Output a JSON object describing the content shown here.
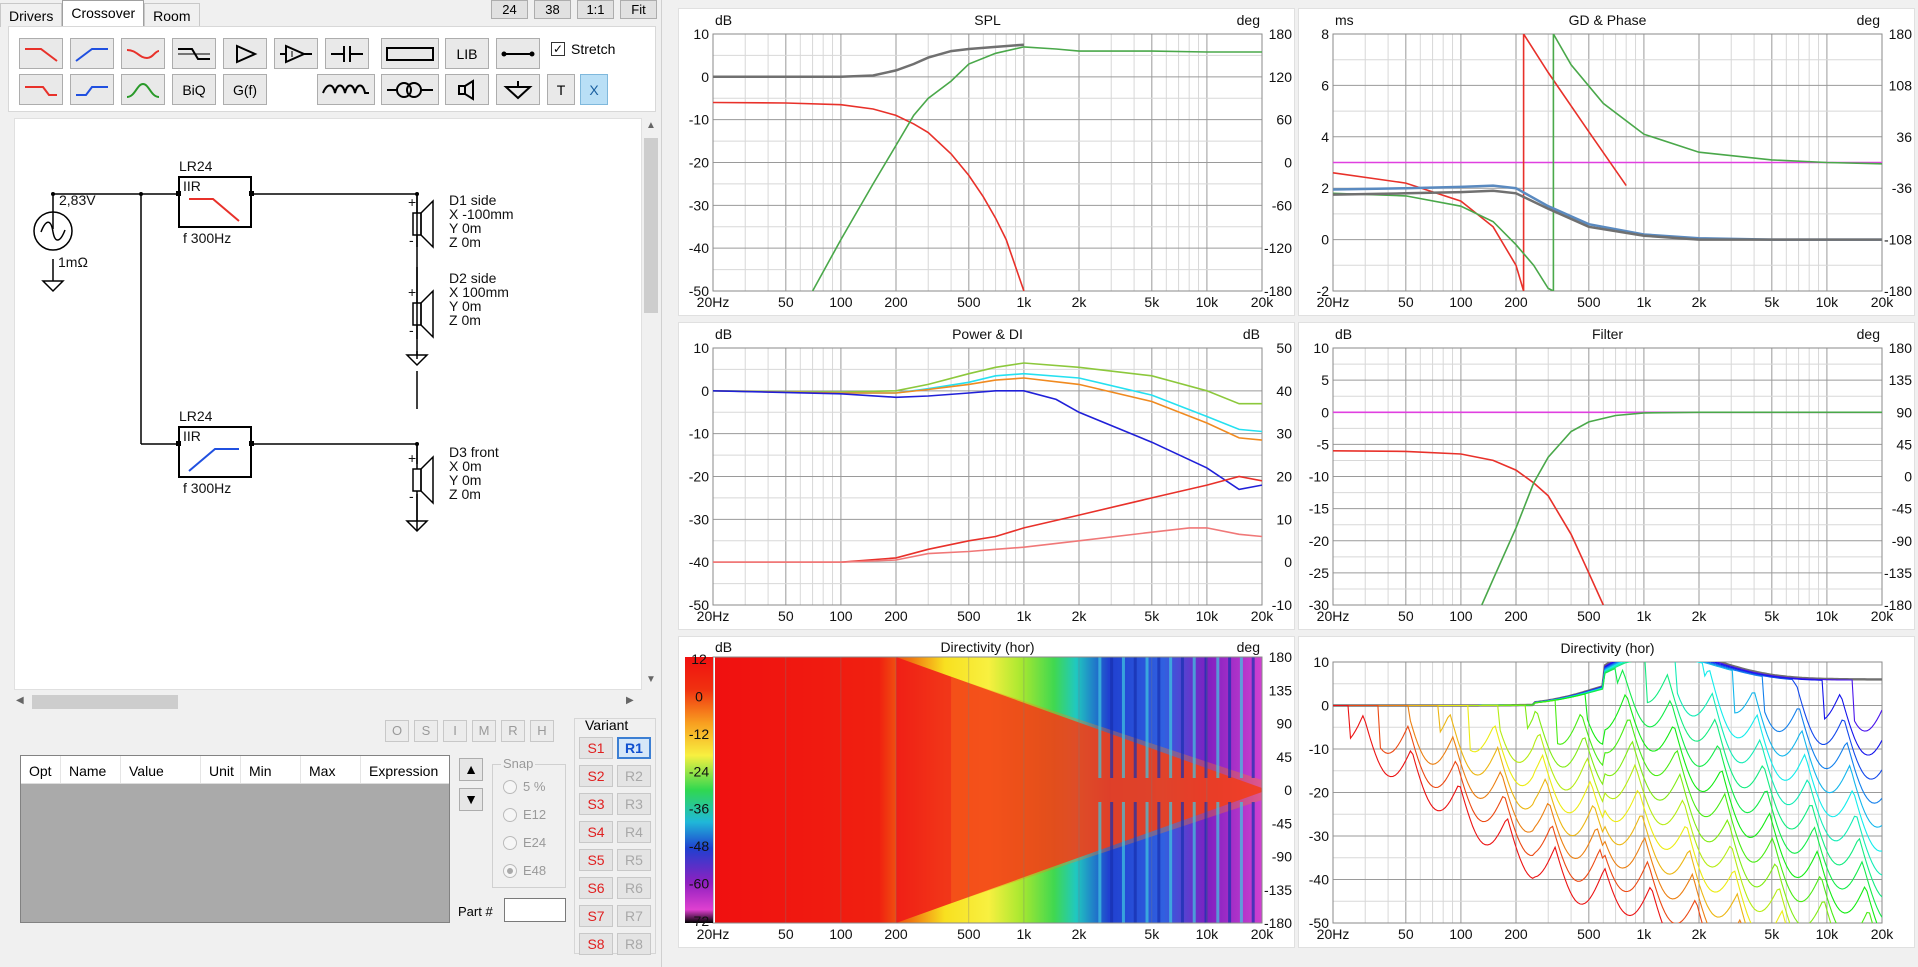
{
  "tabs": [
    {
      "label": "Drivers"
    },
    {
      "label": "Crossover"
    },
    {
      "label": "Room"
    }
  ],
  "zoom_buttons": [
    "24",
    "38",
    "1:1",
    "Fit"
  ],
  "toolbox": {
    "biq": "BiQ",
    "gf": "G(f)",
    "lib": "LIB",
    "t": "T",
    "x": "X",
    "stretch_label": "Stretch",
    "stretch_checked": "✓"
  },
  "schematic": {
    "source_voltage": "2,83V",
    "source_impedance": "1mΩ",
    "filter1": {
      "name": "LR24",
      "type": "IIR",
      "freq": "f   300Hz"
    },
    "filter2": {
      "name": "LR24",
      "type": "IIR",
      "freq": "f   300Hz"
    },
    "drivers": [
      {
        "name": "D1 side",
        "x": "X -100mm",
        "y": "Y 0m",
        "z": "Z 0m"
      },
      {
        "name": "D2 side",
        "x": "X 100mm",
        "y": "Y 0m",
        "z": "Z 0m"
      },
      {
        "name": "D3 front",
        "x": "X 0m",
        "y": "Y 0m",
        "z": "Z 0m"
      }
    ]
  },
  "optimizer_buttons": [
    "O",
    "S",
    "I",
    "M",
    "R",
    "H"
  ],
  "param_table": {
    "columns": [
      "Opt",
      "Name",
      "Value",
      "Unit",
      "Min",
      "Max",
      "Expression"
    ]
  },
  "snap": {
    "legend": "Snap",
    "options": [
      "5 %",
      "E12",
      "E24",
      "E48"
    ],
    "selected": "E48"
  },
  "part_label": "Part #",
  "variant": {
    "title": "Variant",
    "s_buttons": [
      "S1",
      "S2",
      "S3",
      "S4",
      "S5",
      "S6",
      "S7",
      "S8"
    ],
    "r_buttons": [
      "R1",
      "R2",
      "R3",
      "R4",
      "R5",
      "R6",
      "R7",
      "R8"
    ],
    "selected": "R1"
  },
  "colors": {
    "red": "#e8312a",
    "green": "#4aa84a",
    "gray": "#707070",
    "blue": "#2020d8",
    "cyan": "#25e0f0",
    "orange": "#f08a20",
    "lime": "#8cc83c",
    "pink": "#f07878",
    "magenta": "#e040e0",
    "steel": "#5a8ac0"
  },
  "chart_data": [
    {
      "type": "line",
      "title": "SPL",
      "xlabel": "",
      "ylabel": "dB",
      "y2label": "deg",
      "xscale": "log",
      "xlim": [
        20,
        20000
      ],
      "ylim": [
        -50,
        10
      ],
      "y2lim": [
        -180,
        180
      ],
      "xticks": [
        "20Hz",
        "50",
        "100",
        "200",
        "500",
        "1k",
        "2k",
        "5k",
        "10k",
        "20k"
      ],
      "yticks": [
        10,
        0,
        -10,
        -20,
        -30,
        -40,
        -50
      ],
      "y2ticks": [
        180,
        120,
        60,
        0,
        -60,
        -120,
        -180
      ],
      "series": [
        {
          "color": "red",
          "x": [
            20,
            50,
            100,
            150,
            200,
            250,
            300,
            400,
            500,
            600,
            700,
            800,
            1000
          ],
          "y": [
            -6,
            -6.1,
            -6.5,
            -7.5,
            -9,
            -11,
            -13,
            -18,
            -23,
            -28,
            -33,
            -38,
            -50
          ]
        },
        {
          "color": "green",
          "x": [
            70,
            100,
            150,
            200,
            250,
            300,
            400,
            500,
            700,
            1000,
            1500,
            2000,
            5000,
            10000,
            20000
          ],
          "y": [
            -50,
            -38,
            -25,
            -16,
            -9,
            -5,
            -1,
            3,
            5.5,
            7,
            6.5,
            6,
            6,
            5.8,
            5.8
          ]
        },
        {
          "color": "gray",
          "x": [
            20,
            100,
            150,
            200,
            250,
            300,
            400,
            500,
            700,
            1000
          ],
          "y": [
            0,
            0,
            0.3,
            1.5,
            3,
            4.5,
            6,
            6.5,
            7,
            7.5
          ]
        }
      ]
    },
    {
      "type": "line",
      "title": "GD & Phase",
      "xlabel": "",
      "ylabel": "ms",
      "y2label": "deg",
      "xscale": "log",
      "xlim": [
        20,
        20000
      ],
      "ylim": [
        -2,
        8
      ],
      "y2lim": [
        -180,
        180
      ],
      "xticks": [
        "20Hz",
        "50",
        "100",
        "200",
        "500",
        "1k",
        "2k",
        "5k",
        "10k",
        "20k"
      ],
      "yticks": [
        8,
        6,
        4,
        2,
        0,
        -2
      ],
      "y2ticks": [
        180,
        108,
        36,
        -36,
        -108,
        -180
      ],
      "series": [
        {
          "color": "magenta",
          "x": [
            20,
            20000
          ],
          "y": [
            3,
            3
          ]
        },
        {
          "color": "red",
          "x": [
            20,
            50,
            100,
            150,
            200,
            220,
            220,
            300,
            500,
            800
          ],
          "y": [
            2.6,
            2.2,
            1.5,
            0.5,
            -1,
            -2,
            8,
            6.5,
            4.2,
            2.1
          ]
        },
        {
          "color": "green",
          "x": [
            20,
            50,
            100,
            150,
            200,
            250,
            300,
            320,
            320,
            400,
            600,
            1000,
            2000,
            5000,
            10000,
            20000
          ],
          "y": [
            1.8,
            1.7,
            1.3,
            0.7,
            -0.2,
            -1,
            -1.9,
            -2,
            8,
            6.8,
            5.3,
            4.1,
            3.4,
            3.1,
            3,
            2.95
          ]
        },
        {
          "color": "steel",
          "x": [
            20,
            50,
            100,
            150,
            200,
            300,
            500,
            1000,
            2000,
            5000,
            20000
          ],
          "y": [
            1.95,
            2,
            2.05,
            2.1,
            2.0,
            1.3,
            0.6,
            0.2,
            0.05,
            0,
            0
          ]
        },
        {
          "color": "gray",
          "x": [
            20,
            50,
            100,
            150,
            200,
            300,
            500,
            1000,
            2000,
            5000,
            20000
          ],
          "y": [
            1.75,
            1.8,
            1.85,
            1.9,
            1.8,
            1.2,
            0.5,
            0.15,
            0,
            0,
            0
          ]
        }
      ]
    },
    {
      "type": "line",
      "title": "Power & DI",
      "xlabel": "",
      "ylabel": "dB",
      "y2label": "dB",
      "xscale": "log",
      "xlim": [
        20,
        20000
      ],
      "ylim": [
        -50,
        10
      ],
      "y2lim": [
        -10,
        50
      ],
      "xticks": [
        "20Hz",
        "50",
        "100",
        "200",
        "500",
        "1k",
        "2k",
        "5k",
        "10k",
        "20k"
      ],
      "yticks": [
        10,
        0,
        -10,
        -20,
        -30,
        -40,
        -50
      ],
      "y2ticks": [
        50,
        40,
        30,
        20,
        10,
        0,
        -10
      ],
      "series": [
        {
          "color": "lime",
          "x": [
            20,
            100,
            200,
            300,
            500,
            700,
            1000,
            2000,
            5000,
            10000,
            15000,
            20000
          ],
          "y": [
            0,
            -0.3,
            0,
            1.5,
            4,
            5.5,
            6.5,
            5.5,
            3.5,
            0,
            -3,
            -3
          ]
        },
        {
          "color": "cyan",
          "x": [
            20,
            100,
            200,
            300,
            500,
            700,
            1000,
            2000,
            5000,
            10000,
            15000,
            20000
          ],
          "y": [
            0,
            -0.5,
            -0.5,
            0.5,
            2,
            3.5,
            4,
            3,
            -1,
            -6,
            -9,
            -9.5
          ]
        },
        {
          "color": "orange",
          "x": [
            20,
            100,
            200,
            300,
            500,
            700,
            1000,
            2000,
            5000,
            10000,
            15000,
            20000
          ],
          "y": [
            0,
            -0.5,
            -0.5,
            0.3,
            1.5,
            2.5,
            3,
            1.5,
            -2.5,
            -7.5,
            -11,
            -11.5
          ]
        },
        {
          "color": "blue",
          "x": [
            20,
            100,
            200,
            300,
            500,
            700,
            1000,
            1500,
            2000,
            5000,
            10000,
            15000,
            20000
          ],
          "y": [
            0,
            -0.7,
            -1.5,
            -1.2,
            -0.5,
            0,
            0,
            -2,
            -5,
            -12,
            -18,
            -23,
            -22
          ]
        },
        {
          "color": "red",
          "x": [
            20,
            100,
            200,
            300,
            500,
            700,
            1000,
            2000,
            5000,
            10000,
            15000,
            20000
          ],
          "y": [
            -40,
            -40,
            -39,
            -37,
            -35,
            -34,
            -32,
            -29,
            -25,
            -22,
            -20,
            -21
          ]
        },
        {
          "color": "pink",
          "x": [
            20,
            100,
            200,
            300,
            500,
            700,
            1000,
            2000,
            5000,
            8000,
            10000,
            15000,
            20000
          ],
          "y": [
            -40,
            -40,
            -39.5,
            -38,
            -37.5,
            -37,
            -36.5,
            -35,
            -33,
            -32,
            -32,
            -33.5,
            -34
          ]
        }
      ]
    },
    {
      "type": "line",
      "title": "Filter",
      "xlabel": "",
      "ylabel": "dB",
      "y2label": "deg",
      "xscale": "log",
      "xlim": [
        20,
        20000
      ],
      "ylim": [
        -30,
        10
      ],
      "y2lim": [
        -180,
        180
      ],
      "xticks": [
        "20Hz",
        "50",
        "100",
        "200",
        "500",
        "1k",
        "2k",
        "5k",
        "10k",
        "20k"
      ],
      "yticks": [
        10,
        5,
        0,
        -5,
        -10,
        -15,
        -20,
        -25,
        -30
      ],
      "y2ticks": [
        180,
        135,
        90,
        45,
        0,
        -45,
        -90,
        -135,
        -180
      ],
      "series": [
        {
          "color": "magenta",
          "x": [
            20,
            20000
          ],
          "y": [
            0,
            0
          ]
        },
        {
          "color": "red",
          "x": [
            20,
            50,
            100,
            150,
            200,
            250,
            300,
            400,
            500,
            600
          ],
          "y": [
            -6,
            -6.1,
            -6.5,
            -7.5,
            -9,
            -11,
            -13,
            -19,
            -25,
            -30
          ]
        },
        {
          "color": "green",
          "x": [
            130,
            150,
            200,
            250,
            300,
            400,
            500,
            700,
            1000,
            2000,
            20000
          ],
          "y": [
            -30,
            -26,
            -18,
            -11,
            -7,
            -3,
            -1.5,
            -0.5,
            -0.1,
            0,
            0
          ]
        }
      ]
    },
    {
      "type": "heatmap",
      "title": "Directivity (hor)",
      "xlabel": "",
      "ylabel": "dB",
      "y2label": "deg",
      "xscale": "log",
      "xlim": [
        20,
        20000
      ],
      "y2lim": [
        -180,
        180
      ],
      "xticks": [
        "20Hz",
        "50",
        "100",
        "200",
        "500",
        "1k",
        "2k",
        "5k",
        "10k",
        "20k"
      ],
      "colorbar_ticks": [
        12,
        0,
        -12,
        -24,
        -36,
        -48,
        -60,
        -72
      ],
      "y2ticks": [
        180,
        135,
        90,
        45,
        0,
        -45,
        -90,
        -135,
        -180
      ]
    },
    {
      "type": "line",
      "title": "Directivity (hor)",
      "xlabel": "",
      "ylabel": "",
      "y2label": "",
      "xscale": "log",
      "xlim": [
        20,
        20000
      ],
      "ylim": [
        -50,
        10
      ],
      "xticks": [
        "20Hz",
        "50",
        "100",
        "200",
        "500",
        "1k",
        "2k",
        "5k",
        "10k",
        "20k"
      ],
      "yticks": [
        10,
        0,
        -10,
        -20,
        -30,
        -40,
        -50
      ],
      "angles_deg": [
        0,
        10,
        20,
        30,
        40,
        50,
        60,
        70,
        80,
        90,
        100,
        110,
        120,
        130,
        140,
        150,
        160,
        170,
        180
      ]
    }
  ]
}
